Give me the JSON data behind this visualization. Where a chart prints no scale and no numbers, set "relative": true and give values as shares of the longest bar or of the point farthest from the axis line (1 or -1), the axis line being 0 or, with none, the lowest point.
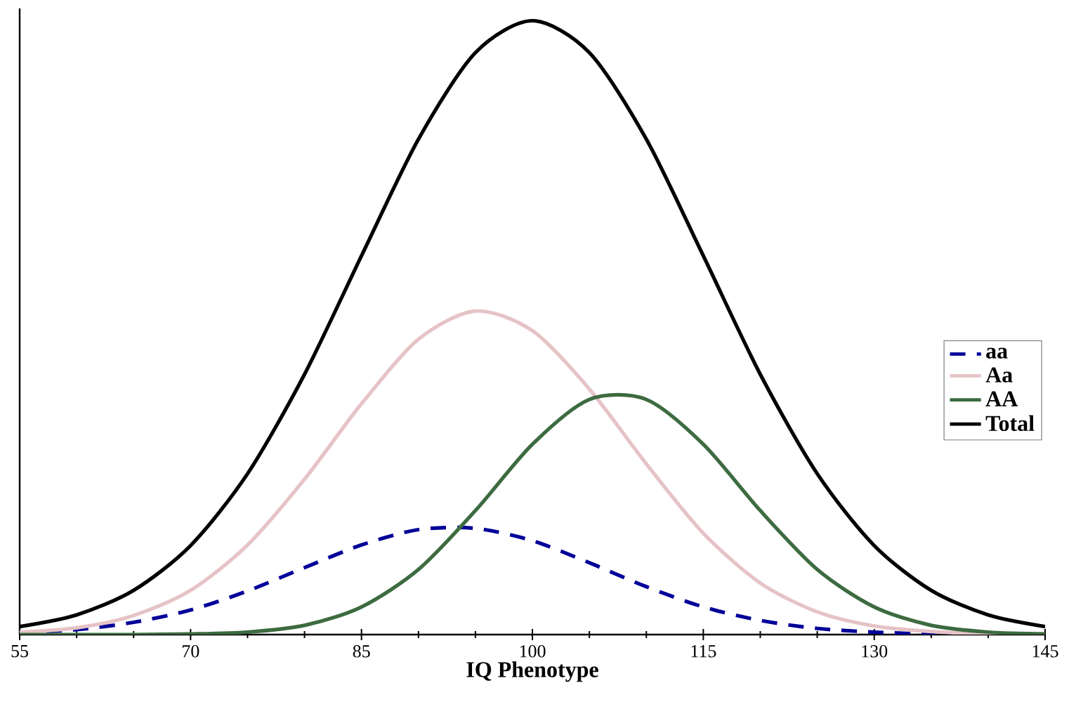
{
  "chart_data": {
    "type": "line",
    "relative": true,
    "xlabel": "IQ Phenotype",
    "x": [
      55,
      60,
      65,
      70,
      75,
      80,
      85,
      90,
      95,
      100,
      105,
      110,
      115,
      120,
      125,
      130,
      135,
      140,
      145
    ],
    "xlim": [
      55,
      145
    ],
    "xticks": [
      55,
      70,
      85,
      100,
      115,
      130,
      145
    ],
    "legend": "right",
    "grid": false,
    "series": [
      {
        "name": "aa",
        "color": "#000099",
        "line_style": "dashed",
        "values": [
          0.003,
          0.008,
          0.02,
          0.04,
          0.071,
          0.109,
          0.146,
          0.171,
          0.173,
          0.153,
          0.117,
          0.078,
          0.045,
          0.023,
          0.01,
          0.004,
          0.001,
          0.0,
          0.0
        ]
      },
      {
        "name": "Aa",
        "color": "#e6c3c6",
        "line_style": "solid",
        "values": [
          0.004,
          0.011,
          0.031,
          0.072,
          0.146,
          0.253,
          0.376,
          0.481,
          0.527,
          0.495,
          0.4,
          0.278,
          0.165,
          0.084,
          0.037,
          0.014,
          0.005,
          0.001,
          0.0
        ]
      },
      {
        "name": "AA",
        "color": "#3d6b40",
        "line_style": "solid",
        "values": [
          0.0,
          0.0,
          0.0,
          0.001,
          0.004,
          0.015,
          0.045,
          0.106,
          0.202,
          0.31,
          0.383,
          0.383,
          0.31,
          0.202,
          0.106,
          0.045,
          0.015,
          0.004,
          0.001
        ]
      },
      {
        "name": "Total",
        "color": "#000000",
        "line_style": "solid",
        "values": [
          0.013,
          0.032,
          0.072,
          0.145,
          0.262,
          0.424,
          0.617,
          0.807,
          0.948,
          1.0,
          0.948,
          0.807,
          0.617,
          0.424,
          0.262,
          0.145,
          0.072,
          0.032,
          0.013
        ]
      }
    ]
  }
}
